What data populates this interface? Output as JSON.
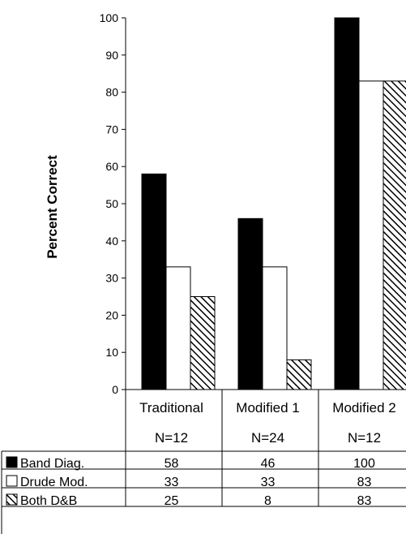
{
  "chart_data": {
    "type": "bar",
    "ylabel": "Percent Correct",
    "ylim": [
      0,
      100
    ],
    "yticks": [
      0,
      10,
      20,
      30,
      40,
      50,
      60,
      70,
      80,
      90,
      100
    ],
    "categories": [
      "Traditional",
      "Modified 1",
      "Modified 2"
    ],
    "sample_sizes": [
      "N=12",
      "N=24",
      "N=12"
    ],
    "series": [
      {
        "name": "Band Diag.",
        "values": [
          58,
          46,
          100
        ],
        "fill": "solid",
        "color": "#000000"
      },
      {
        "name": "Drude Mod.",
        "values": [
          33,
          33,
          83
        ],
        "fill": "hollow",
        "color": "#ffffff"
      },
      {
        "name": "Both D&B",
        "values": [
          25,
          8,
          83
        ],
        "fill": "hatched",
        "color": "#000000"
      }
    ],
    "table_values": [
      [
        "58",
        "46",
        "100"
      ],
      [
        "33",
        "33",
        "83"
      ],
      [
        "25",
        "8",
        "83"
      ]
    ],
    "legend_placement": "data-table-rows",
    "grid": false
  }
}
